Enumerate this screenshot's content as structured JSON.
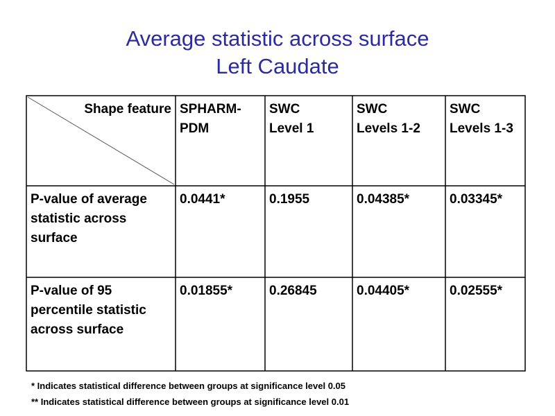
{
  "header": {
    "title_lines": [
      "Average statistic across surface",
      "Left Caudate"
    ]
  },
  "table": {
    "columns": [
      [
        "Shape feature"
      ],
      [
        "SPHARM-",
        "PDM"
      ],
      [
        "SWC",
        "Level 1"
      ],
      [
        "SWC",
        "Levels 1-2"
      ],
      [
        "SWC",
        "Levels 1-3"
      ]
    ],
    "rows": [
      {
        "label": [
          "P-value of average",
          "statistic across",
          "surface"
        ],
        "cells": [
          "0.0441*",
          "0.1955",
          "0.04385*",
          "0.03345*"
        ]
      },
      {
        "label": [
          "P-value of 95",
          "percentile statistic",
          "across surface"
        ],
        "cells": [
          "0.01855*",
          "0.26845",
          "0.04405*",
          "0.02555*"
        ]
      }
    ]
  },
  "footnotes": [
    "* Indicates statistical difference between groups at significance level 0.05",
    "** Indicates statistical difference between groups at significance level 0.01"
  ]
}
